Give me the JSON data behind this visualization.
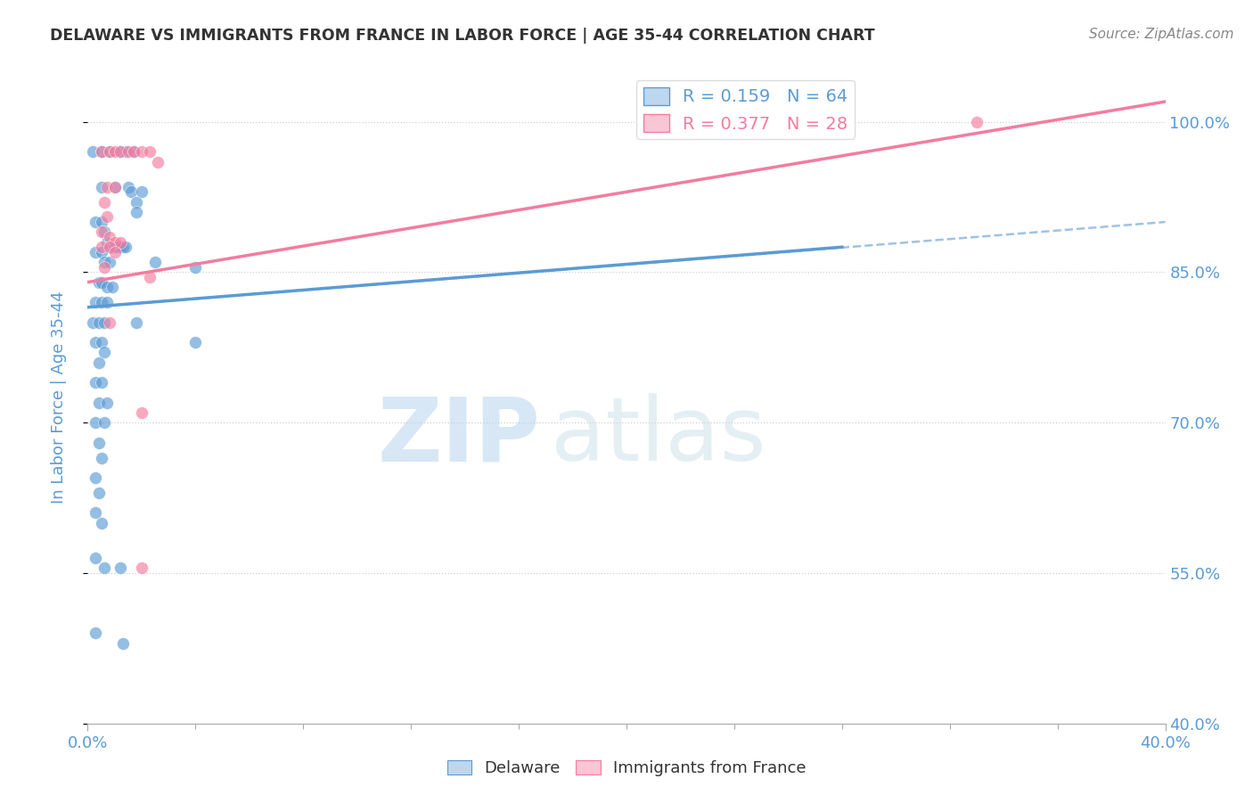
{
  "title": "DELAWARE VS IMMIGRANTS FROM FRANCE IN LABOR FORCE | AGE 35-44 CORRELATION CHART",
  "source": "Source: ZipAtlas.com",
  "ylabel": "In Labor Force | Age 35-44",
  "xlim": [
    0.0,
    0.4
  ],
  "ylim": [
    0.4,
    1.05
  ],
  "ytick_labels": [
    "40.0%",
    "55.0%",
    "70.0%",
    "85.0%",
    "100.0%"
  ],
  "ytick_values": [
    0.4,
    0.55,
    0.7,
    0.85,
    1.0
  ],
  "xtick_major": [
    0.0,
    0.4
  ],
  "xtick_minor": [
    0.04,
    0.08,
    0.12,
    0.16,
    0.2,
    0.24,
    0.28,
    0.32,
    0.36
  ],
  "blue_r": 0.159,
  "blue_n": 64,
  "pink_r": 0.377,
  "pink_n": 28,
  "blue_scatter": [
    [
      0.002,
      0.97
    ],
    [
      0.005,
      0.97
    ],
    [
      0.008,
      0.97
    ],
    [
      0.012,
      0.97
    ],
    [
      0.014,
      0.97
    ],
    [
      0.017,
      0.97
    ],
    [
      0.005,
      0.935
    ],
    [
      0.01,
      0.935
    ],
    [
      0.015,
      0.935
    ],
    [
      0.016,
      0.93
    ],
    [
      0.02,
      0.93
    ],
    [
      0.018,
      0.92
    ],
    [
      0.018,
      0.91
    ],
    [
      0.003,
      0.9
    ],
    [
      0.005,
      0.9
    ],
    [
      0.006,
      0.89
    ],
    [
      0.007,
      0.88
    ],
    [
      0.008,
      0.875
    ],
    [
      0.009,
      0.875
    ],
    [
      0.01,
      0.875
    ],
    [
      0.011,
      0.875
    ],
    [
      0.012,
      0.875
    ],
    [
      0.013,
      0.875
    ],
    [
      0.014,
      0.875
    ],
    [
      0.003,
      0.87
    ],
    [
      0.005,
      0.87
    ],
    [
      0.006,
      0.86
    ],
    [
      0.008,
      0.86
    ],
    [
      0.025,
      0.86
    ],
    [
      0.004,
      0.84
    ],
    [
      0.005,
      0.84
    ],
    [
      0.007,
      0.835
    ],
    [
      0.009,
      0.835
    ],
    [
      0.04,
      0.855
    ],
    [
      0.003,
      0.82
    ],
    [
      0.005,
      0.82
    ],
    [
      0.007,
      0.82
    ],
    [
      0.018,
      0.8
    ],
    [
      0.04,
      0.78
    ],
    [
      0.002,
      0.8
    ],
    [
      0.004,
      0.8
    ],
    [
      0.006,
      0.8
    ],
    [
      0.003,
      0.78
    ],
    [
      0.005,
      0.78
    ],
    [
      0.004,
      0.76
    ],
    [
      0.006,
      0.77
    ],
    [
      0.003,
      0.74
    ],
    [
      0.005,
      0.74
    ],
    [
      0.004,
      0.72
    ],
    [
      0.007,
      0.72
    ],
    [
      0.003,
      0.7
    ],
    [
      0.006,
      0.7
    ],
    [
      0.004,
      0.68
    ],
    [
      0.005,
      0.665
    ],
    [
      0.003,
      0.645
    ],
    [
      0.004,
      0.63
    ],
    [
      0.003,
      0.61
    ],
    [
      0.005,
      0.6
    ],
    [
      0.003,
      0.565
    ],
    [
      0.006,
      0.555
    ],
    [
      0.012,
      0.555
    ],
    [
      0.003,
      0.49
    ],
    [
      0.013,
      0.48
    ]
  ],
  "pink_scatter": [
    [
      0.005,
      0.97
    ],
    [
      0.008,
      0.97
    ],
    [
      0.01,
      0.97
    ],
    [
      0.012,
      0.97
    ],
    [
      0.015,
      0.97
    ],
    [
      0.017,
      0.97
    ],
    [
      0.02,
      0.97
    ],
    [
      0.023,
      0.97
    ],
    [
      0.026,
      0.96
    ],
    [
      0.007,
      0.935
    ],
    [
      0.01,
      0.935
    ],
    [
      0.006,
      0.92
    ],
    [
      0.007,
      0.905
    ],
    [
      0.005,
      0.89
    ],
    [
      0.008,
      0.885
    ],
    [
      0.01,
      0.88
    ],
    [
      0.012,
      0.88
    ],
    [
      0.005,
      0.875
    ],
    [
      0.008,
      0.875
    ],
    [
      0.01,
      0.87
    ],
    [
      0.023,
      0.845
    ],
    [
      0.006,
      0.855
    ],
    [
      0.008,
      0.8
    ],
    [
      0.02,
      0.71
    ],
    [
      0.02,
      0.555
    ],
    [
      0.33,
      1.0
    ]
  ],
  "blue_line": {
    "x0": 0.0,
    "x1": 0.28,
    "y0": 0.815,
    "y1": 0.875
  },
  "blue_dash_line": {
    "x0": 0.0,
    "x1": 0.4,
    "y0": 0.815,
    "y1": 0.9
  },
  "pink_line": {
    "x0": 0.0,
    "x1": 0.4,
    "y0": 0.84,
    "y1": 1.02
  },
  "watermark_zip": "ZIP",
  "watermark_atlas": "atlas",
  "scatter_size": 100,
  "scatter_alpha": 0.65,
  "blue_color": "#5b9bd5",
  "pink_color": "#f47c9e",
  "blue_fill": "#bdd7ee",
  "pink_fill": "#f9c6d5",
  "background_color": "#ffffff",
  "grid_color": "#d0d0d0",
  "title_color": "#333333",
  "axis_label_color": "#5b9bd5",
  "tick_label_color": "#5b9bd5",
  "source_color": "#888888"
}
